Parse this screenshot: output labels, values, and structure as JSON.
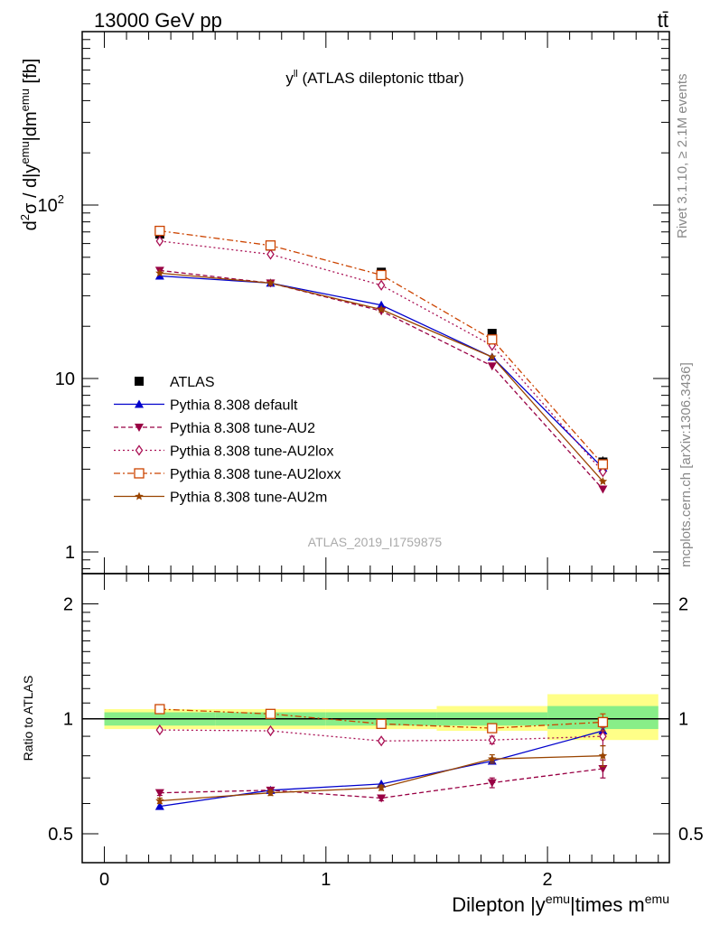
{
  "header": {
    "left_label": "13000 GeV pp",
    "right_label": "tt̄"
  },
  "side_labels": {
    "rivet": "Rivet 3.1.10, ≥ 2.1M events",
    "mcplots": "mcplots.cern.ch [arXiv:1306.3436]"
  },
  "chart_data": [
    {
      "type": "line",
      "panel": "main",
      "title": "y^ll (ATLAS dileptonic ttbar)",
      "title_base": "y",
      "title_sup": "ll",
      "title_rest": " (ATLAS dileptonic ttbar)",
      "watermark": "ATLAS_2019_I1759875",
      "ylabel": "d²σ / d|y^emu|dm^emu [fb]",
      "yscale": "log",
      "ylim": [
        0.75,
        1000
      ],
      "xlim": [
        -0.1,
        2.55
      ],
      "yticks": [
        {
          "value": 1,
          "label": "1"
        },
        {
          "value": 10,
          "label": "10"
        },
        {
          "value": 100,
          "label": "10",
          "sup": "2"
        }
      ],
      "x": [
        0.25,
        0.75,
        1.25,
        1.75,
        2.25
      ],
      "series": [
        {
          "name": "ATLAS",
          "style": "data",
          "color": "#000000",
          "marker": "square-filled",
          "dash": "",
          "values": [
            68,
            58,
            41,
            18.2,
            3.3
          ],
          "err": [
            2.5,
            2.0,
            1.5,
            0.8,
            0.25
          ]
        },
        {
          "name": "Pythia 8.308 default",
          "color": "#0000cc",
          "marker": "triangle-up-filled",
          "dash": "",
          "values": [
            39,
            35.5,
            26.5,
            13.3,
            3.05
          ]
        },
        {
          "name": "Pythia 8.308 tune-AU2",
          "color": "#990044",
          "marker": "triangle-down-filled",
          "dash": "5,3",
          "values": [
            42,
            35.5,
            24.5,
            11.8,
            2.3
          ]
        },
        {
          "name": "Pythia 8.308 tune-AU2lox",
          "color": "#aa1155",
          "marker": "diamond-open",
          "dash": "2,3",
          "values": [
            62,
            52,
            34.5,
            15.5,
            2.9
          ]
        },
        {
          "name": "Pythia 8.308 tune-AU2loxx",
          "color": "#cc4400",
          "marker": "square-open",
          "dash": "7,3,2,3",
          "values": [
            71,
            58.5,
            39.5,
            16.8,
            3.2
          ]
        },
        {
          "name": "Pythia 8.308 tune-AU2m",
          "color": "#994400",
          "marker": "star-filled",
          "dash": "",
          "values": [
            40.5,
            35.5,
            25,
            13.3,
            2.55
          ]
        }
      ]
    },
    {
      "type": "line",
      "panel": "ratio",
      "ylabel": "Ratio to ATLAS",
      "xlabel": "Dilepton |y^emu|times m^emu",
      "yscale": "log",
      "ylim": [
        0.42,
        2.4
      ],
      "xlim": [
        -0.1,
        2.55
      ],
      "yticks": [
        {
          "value": 0.5,
          "label": "0.5"
        },
        {
          "value": 1,
          "label": "1"
        },
        {
          "value": 2,
          "label": "2"
        }
      ],
      "xticks": [
        {
          "value": 0,
          "label": "0"
        },
        {
          "value": 1,
          "label": "1"
        },
        {
          "value": 2,
          "label": "2"
        }
      ],
      "bands": [
        {
          "x": [
            0,
            0.5
          ],
          "inner": [
            0.96,
            1.04
          ],
          "outer": [
            0.94,
            1.06
          ]
        },
        {
          "x": [
            0.5,
            1.0
          ],
          "inner": [
            0.96,
            1.04
          ],
          "outer": [
            0.94,
            1.06
          ]
        },
        {
          "x": [
            1.0,
            1.5
          ],
          "inner": [
            0.96,
            1.04
          ],
          "outer": [
            0.94,
            1.06
          ]
        },
        {
          "x": [
            1.5,
            2.0
          ],
          "inner": [
            0.96,
            1.04
          ],
          "outer": [
            0.93,
            1.08
          ]
        },
        {
          "x": [
            2.0,
            2.5
          ],
          "inner": [
            0.94,
            1.08
          ],
          "outer": [
            0.88,
            1.16
          ]
        }
      ],
      "band_colors": {
        "inner": "#88ee88",
        "outer": "#ffff88"
      },
      "x": [
        0.25,
        0.75,
        1.25,
        1.75,
        2.25
      ],
      "series": [
        {
          "name": "Pythia 8.308 default",
          "values": [
            0.59,
            0.65,
            0.675,
            0.775,
            0.93
          ]
        },
        {
          "name": "Pythia 8.308 tune-AU2",
          "values": [
            0.64,
            0.65,
            0.62,
            0.68,
            0.74
          ],
          "err": [
            0.01,
            0.01,
            0.01,
            0.02,
            0.04
          ]
        },
        {
          "name": "Pythia 8.308 tune-AU2lox",
          "values": [
            0.935,
            0.93,
            0.875,
            0.88,
            0.9
          ],
          "err": [
            0.01,
            0.01,
            0.01,
            0.02,
            0.05
          ]
        },
        {
          "name": "Pythia 8.308 tune-AU2loxx",
          "values": [
            1.06,
            1.03,
            0.97,
            0.945,
            0.98
          ],
          "err": [
            0.01,
            0.01,
            0.01,
            0.02,
            0.05
          ]
        },
        {
          "name": "Pythia 8.308 tune-AU2m",
          "values": [
            0.61,
            0.64,
            0.66,
            0.785,
            0.8
          ],
          "err": [
            0.01,
            0.01,
            0.01,
            0.02,
            0.05
          ]
        }
      ]
    }
  ]
}
